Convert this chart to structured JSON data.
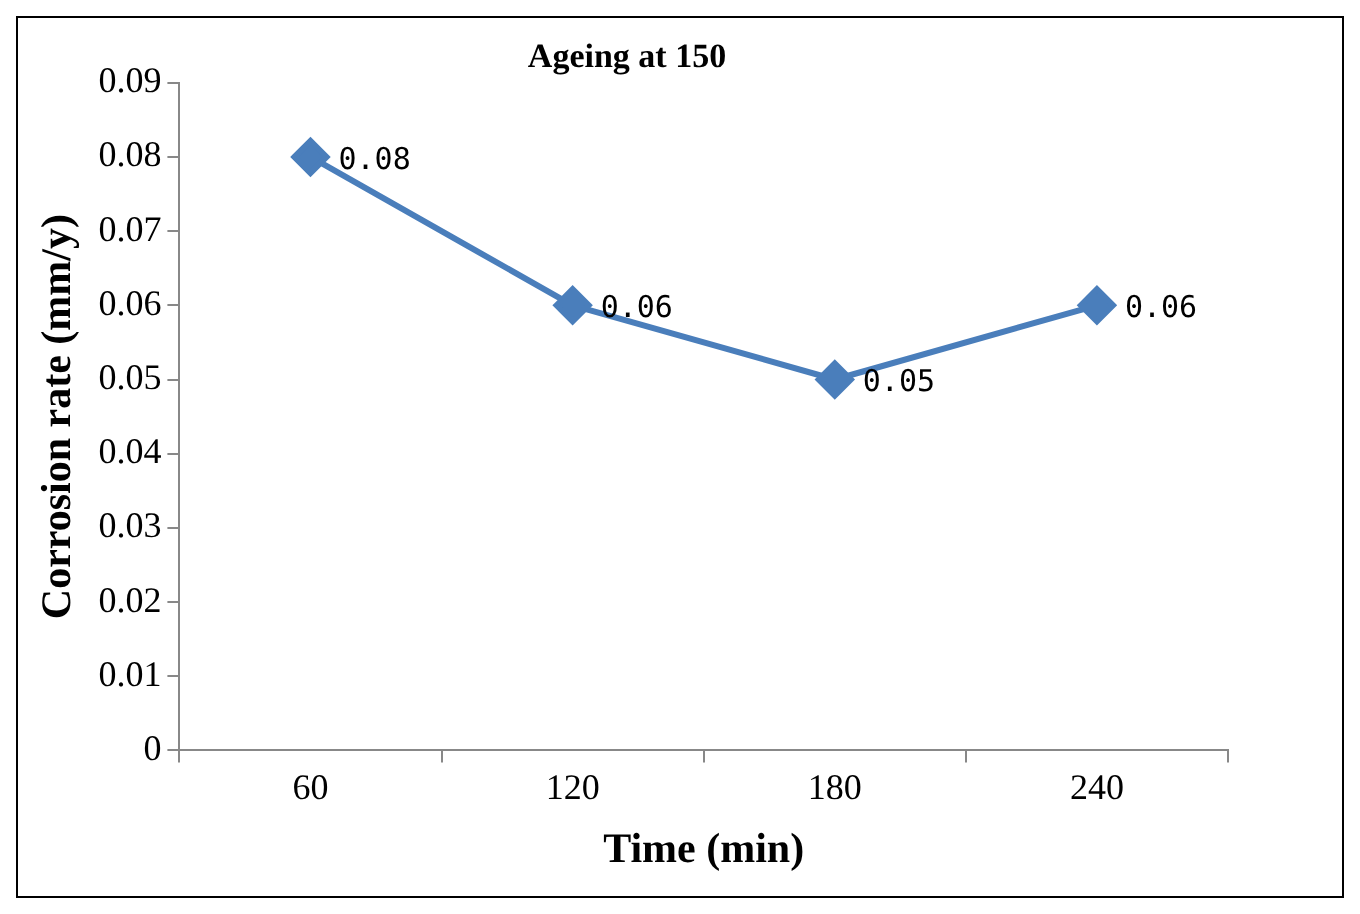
{
  "chart_data": {
    "type": "line",
    "title": "Ageing at 150",
    "xlabel": "Time (min)",
    "ylabel": "Corrosion rate (mm/y)",
    "categories": [
      "60",
      "120",
      "180",
      "240"
    ],
    "series": [
      {
        "color": "#4a7ebb",
        "values": [
          0.08,
          0.06,
          0.05,
          0.06
        ]
      }
    ],
    "ylim": [
      0,
      0.09
    ],
    "yticks": [
      0,
      0.01,
      0.02,
      0.03,
      0.04,
      0.05,
      0.06,
      0.07,
      0.08,
      0.09
    ],
    "grid": false,
    "legend": false,
    "marker": "diamond",
    "line_style": "solid",
    "data_labels": true
  }
}
